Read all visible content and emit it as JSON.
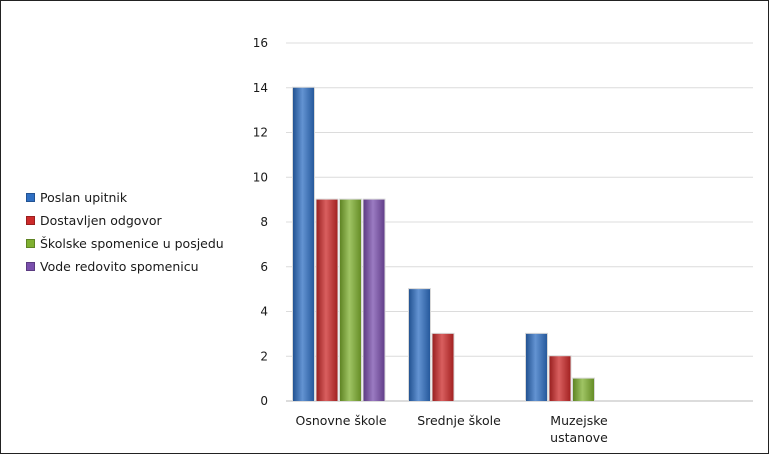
{
  "chart_data": {
    "type": "bar",
    "categories": [
      [
        "Osnovne škole"
      ],
      [
        "Srednje škole"
      ],
      [
        "Muzejske",
        "ustanove"
      ]
    ],
    "series": [
      {
        "name": "Poslan upitnik",
        "values": [
          14,
          5,
          3
        ],
        "color": "#2f6fc3"
      },
      {
        "name": "Dostavljen odgovor",
        "values": [
          9,
          3,
          2
        ],
        "color": "#cc2a2a"
      },
      {
        "name": "Školske spomenice u posjedu",
        "values": [
          9,
          0,
          1
        ],
        "color": "#7fb030"
      },
      {
        "name": "Vode redovito spomenicu",
        "values": [
          9,
          0,
          0
        ],
        "color": "#7a4fad"
      }
    ],
    "ylim": [
      0,
      16
    ],
    "yticks": [
      0,
      2,
      4,
      6,
      8,
      10,
      12,
      14,
      16
    ],
    "grid": true,
    "legend_position": "left"
  }
}
